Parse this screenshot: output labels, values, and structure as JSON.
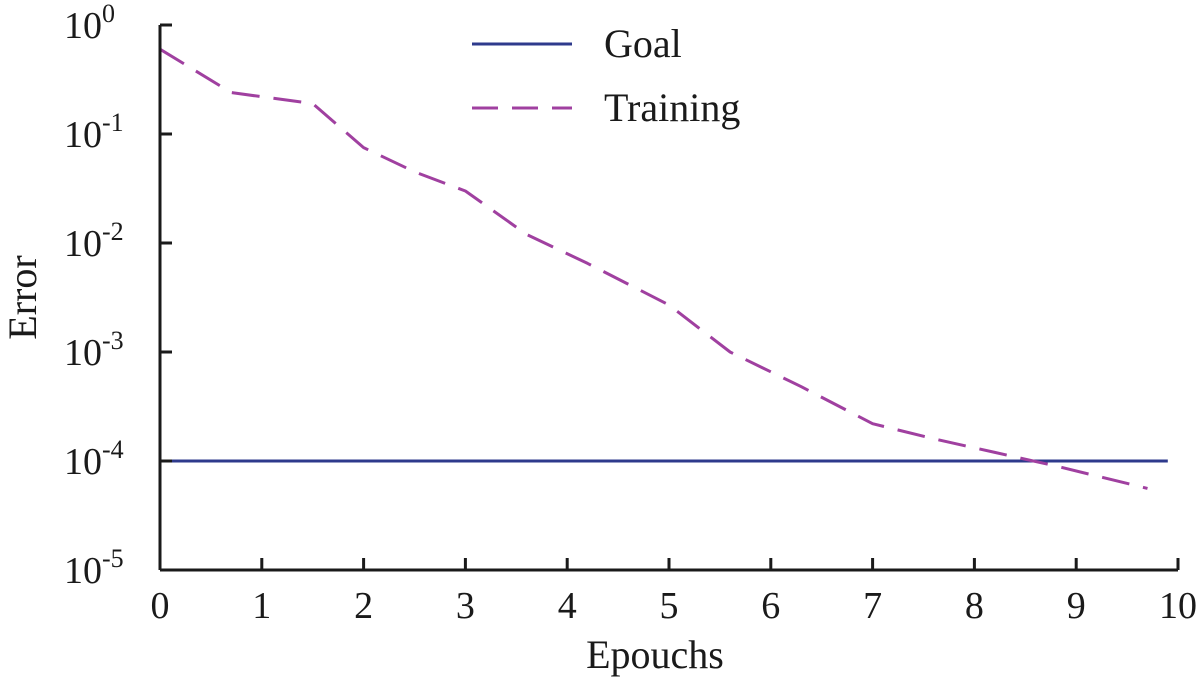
{
  "chart_data": {
    "type": "line",
    "title": "",
    "xlabel": "Epouchs",
    "ylabel": "Error",
    "xlim": [
      0,
      10
    ],
    "ylim": [
      1e-05,
      1
    ],
    "yscale": "log",
    "grid": false,
    "legend_position": "top-center",
    "x_ticks": [
      0,
      1,
      2,
      3,
      4,
      5,
      6,
      7,
      8,
      9,
      10
    ],
    "x_tick_labels": [
      "0",
      "1",
      "2",
      "3",
      "4",
      "5",
      "6",
      "7",
      "8",
      "9",
      "10"
    ],
    "y_ticks": [
      {
        "value": 1,
        "base": "10",
        "exp": "0"
      },
      {
        "value": 0.1,
        "base": "10",
        "exp": "-1"
      },
      {
        "value": 0.01,
        "base": "10",
        "exp": "-2"
      },
      {
        "value": 0.001,
        "base": "10",
        "exp": "-3"
      },
      {
        "value": 0.0001,
        "base": "10",
        "exp": "-4"
      },
      {
        "value": 1e-05,
        "base": "10",
        "exp": "-5"
      }
    ],
    "series": [
      {
        "name": "Goal",
        "style": "solid",
        "color": "#2e3a8c",
        "x": [
          0,
          9.9
        ],
        "y": [
          0.0001,
          0.0001
        ]
      },
      {
        "name": "Training",
        "style": "dashed",
        "color": "#a040a0",
        "x": [
          0,
          0.7,
          1.5,
          2.0,
          2.5,
          3.0,
          3.6,
          4.2,
          5.0,
          5.6,
          6.3,
          7.0,
          7.6,
          8.2,
          8.8,
          9.7
        ],
        "y": [
          0.6,
          0.24,
          0.19,
          0.075,
          0.045,
          0.03,
          0.012,
          0.0065,
          0.0027,
          0.001,
          0.00048,
          0.00022,
          0.00016,
          0.00012,
          9e-05,
          5.6e-05
        ]
      }
    ]
  }
}
